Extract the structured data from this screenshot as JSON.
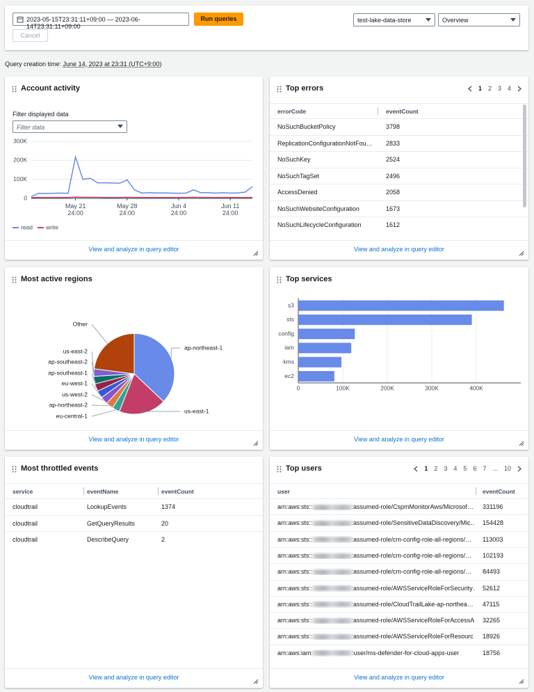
{
  "toolbar": {
    "date_range": "2023-05-15T23:31:11+09:00 — 2023-06-14T23:31:11+09:00",
    "run_button": "Run queries",
    "cancel_button": "Cancel",
    "data_store": "test-lake-data-store",
    "view": "Overview"
  },
  "query_time": {
    "label": "Query creation time:",
    "value": "June 14, 2023 at 23:31 (UTC+9:00)"
  },
  "chart_data": [
    {
      "type": "line",
      "title": "Account activity",
      "filter_label": "Filter displayed data",
      "filter_placeholder": "Filter data",
      "categories": [
        null,
        null,
        null,
        null,
        null,
        null,
        "May 21\n24:00",
        null,
        null,
        null,
        null,
        null,
        null,
        "May 28\n24:00",
        null,
        null,
        null,
        null,
        null,
        null,
        "Jun 4\n24:00",
        null,
        null,
        null,
        null,
        null,
        null,
        "Jun 11\n24:00",
        null,
        null,
        null
      ],
      "series": [
        {
          "name": "read",
          "color": "#688ae8",
          "values": [
            10000,
            27000,
            26000,
            27000,
            28000,
            27000,
            218000,
            100000,
            106000,
            82000,
            82000,
            81000,
            80000,
            97000,
            45000,
            28000,
            30000,
            29000,
            29000,
            28000,
            27000,
            28000,
            45000,
            30000,
            30000,
            28000,
            30000,
            28000,
            29000,
            33000,
            62000
          ]
        },
        {
          "name": "write",
          "color": "#c33d69",
          "values": [
            4000,
            5000,
            5000,
            5000,
            5000,
            5000,
            7000,
            6000,
            6000,
            6000,
            5000,
            5000,
            5000,
            6000,
            5000,
            5000,
            5000,
            5000,
            5000,
            5000,
            5000,
            5000,
            6000,
            5000,
            5000,
            5000,
            5000,
            5000,
            5000,
            5000,
            5000
          ]
        }
      ],
      "ylim": [
        0,
        300000
      ],
      "yticks": [
        0,
        {
          "value": 100000,
          "label": "100K"
        },
        {
          "value": 200000,
          "label": "200K"
        },
        {
          "value": 300000,
          "label": "300K"
        }
      ],
      "grid": true,
      "link": "View and analyze in query editor"
    },
    {
      "type": "pie",
      "title": "Most active regions",
      "categories": [
        "ap-northeast-1",
        "us-east-1",
        "eu-central-1",
        "ap-northeast-2",
        "us-west-2",
        "eu-west-1",
        "ap-southeast-1",
        "ap-southeast-2",
        "us-east-2",
        "Other"
      ],
      "values": [
        37,
        19,
        3,
        3,
        3,
        3,
        3,
        3,
        3,
        23
      ],
      "colors": [
        "#688ae8",
        "#c33d69",
        "#2ea597",
        "#e07941",
        "#8456ce",
        "#3759ce",
        "#962249",
        "#096f64",
        "#7d5fd1",
        "#b1420b"
      ],
      "link": "View and analyze in query editor"
    },
    {
      "type": "bar",
      "orientation": "horizontal",
      "title": "Top services",
      "categories": [
        "s3",
        "sts",
        "config",
        "iam",
        "kms",
        "ec2"
      ],
      "values": [
        462000,
        390000,
        127000,
        119000,
        97000,
        81000
      ],
      "color": "#688ae8",
      "xlim": [
        0,
        500000
      ],
      "xticks": [
        0,
        {
          "value": 100000,
          "label": "100K"
        },
        {
          "value": 200000,
          "label": "200K"
        },
        {
          "value": 300000,
          "label": "300K"
        },
        {
          "value": 400000,
          "label": "400K"
        }
      ],
      "grid": true,
      "link": "View and analyze in query editor"
    }
  ],
  "top_errors": {
    "title": "Top errors",
    "pages": [
      1,
      2,
      3,
      4
    ],
    "columns": [
      "errorCode",
      "eventCount"
    ],
    "rows": [
      [
        "NoSuchBucketPolicy",
        3798
      ],
      [
        "ReplicationConfigurationNotFou…",
        2833
      ],
      [
        "NoSuchKey",
        2524
      ],
      [
        "NoSuchTagSet",
        2496
      ],
      [
        "AccessDenied",
        2058
      ],
      [
        "NoSuchWebsiteConfiguration",
        1673
      ],
      [
        "NoSuchLifecycleConfiguration",
        1612
      ]
    ],
    "link": "View and analyze in query editor"
  },
  "throttled_events": {
    "title": "Most throttled events",
    "columns": [
      "service",
      "eventName",
      "eventCount"
    ],
    "rows": [
      [
        "cloudtrail",
        "LookupEvents",
        1374
      ],
      [
        "cloudtrail",
        "GetQueryResults",
        20
      ],
      [
        "cloudtrail",
        "DescribeQuery",
        2
      ]
    ],
    "link": "View and analyze in query editor"
  },
  "top_users": {
    "title": "Top users",
    "pages": [
      1,
      2,
      3,
      4,
      5,
      6,
      7,
      "...",
      10
    ],
    "columns": [
      "user",
      "eventCount"
    ],
    "rows": [
      [
        "arn:aws:sts::",
        ":assumed-role/CspmMonitorAws/Microsof…",
        331196
      ],
      [
        "arn:aws:sts::",
        ":assumed-role/SensitiveDataDiscovery/Mic…",
        154428
      ],
      [
        "arn:aws:sts::",
        ":assumed-role/cm-config-role-all-regions/…",
        113003
      ],
      [
        "arn:aws:sts::",
        ":assumed-role/cm-config-role-all-regions/…",
        102193
      ],
      [
        "arn:aws:sts::",
        ":assumed-role/cm-config-role-all-regions/…",
        84493
      ],
      [
        "arn:aws:sts::",
        ":assumed-role/AWSServiceRoleForSecurity…",
        52612
      ],
      [
        "arn:aws:sts::",
        ":assumed-role/CloudTrailLake-ap-northea…",
        47115
      ],
      [
        "arn:aws:sts::",
        ":assumed-role/AWSServiceRoleForAccessA…",
        32265
      ],
      [
        "arn:aws:sts::",
        ":assumed-role/AWSServiceRoleForResourc…",
        18926
      ],
      [
        "arn:aws:iam:",
        ":user/ms-defender-for-cloud-apps-user",
        18756
      ]
    ],
    "link": "View and analyze in query editor"
  }
}
